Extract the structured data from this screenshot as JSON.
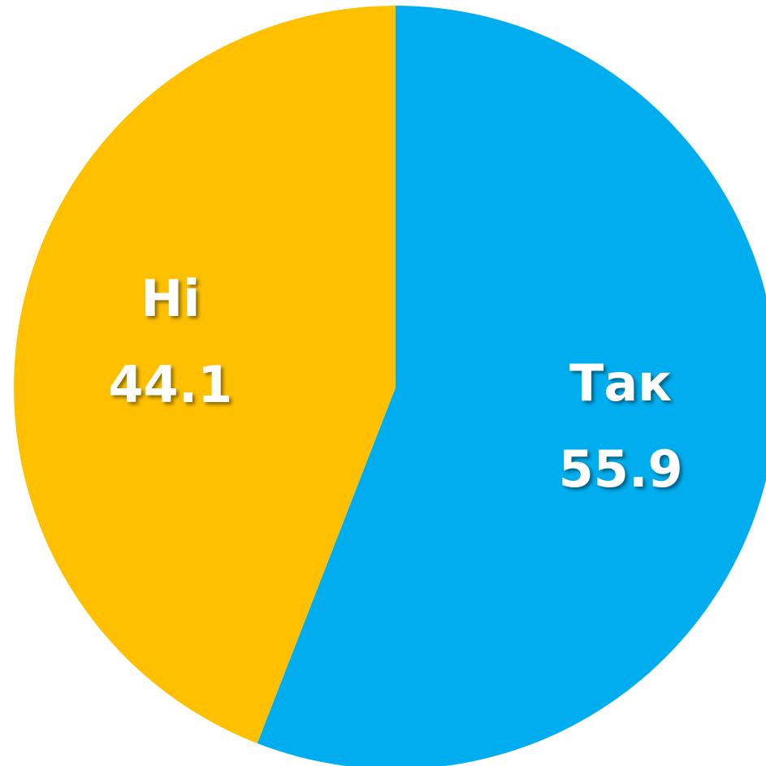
{
  "chart_data": {
    "type": "pie",
    "categories": [
      "Так",
      "Ні"
    ],
    "values": [
      55.9,
      44.1
    ],
    "colors": [
      "#00AEEF",
      "#FFC000"
    ]
  }
}
